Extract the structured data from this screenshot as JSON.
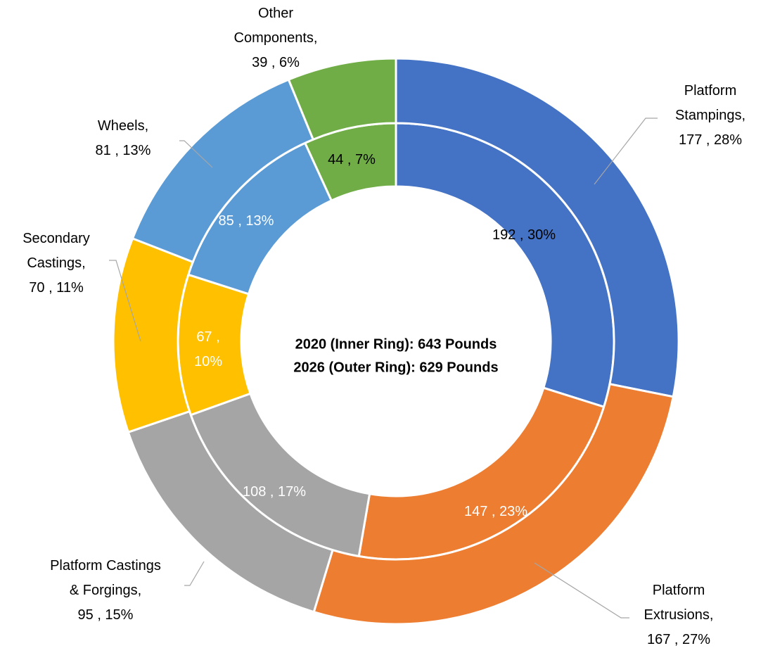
{
  "chart_data": {
    "type": "doughnut",
    "annotations": [
      "2020 (Inner Ring): 643 Pounds",
      "2026 (Outer Ring): 629 Pounds"
    ],
    "colors": [
      "#4472c4",
      "#ed7d31",
      "#a5a5a5",
      "#ffc000",
      "#5b9bd5",
      "#70ad47"
    ],
    "series": [
      {
        "values": [
          192,
          147,
          108,
          67,
          85,
          44
        ],
        "value_labels": [
          "192 , 30%",
          "147 , 23%",
          "108 , 17%",
          "67 ,\n10%",
          "85 , 13%",
          "44 , 7%"
        ]
      },
      {
        "values": [
          177,
          167,
          95,
          70,
          81,
          39
        ],
        "value_labels": [
          "Platform\nStampings,\n177 , 28%",
          "Platform\nExtrusions,\n167 , 27%",
          "Platform Castings\n& Forgings,\n95 , 15%",
          "Secondary\nCastings,\n70 , 11%",
          "Wheels,\n81 , 13%",
          "Other\nComponents,\n39 , 6%"
        ]
      }
    ]
  }
}
